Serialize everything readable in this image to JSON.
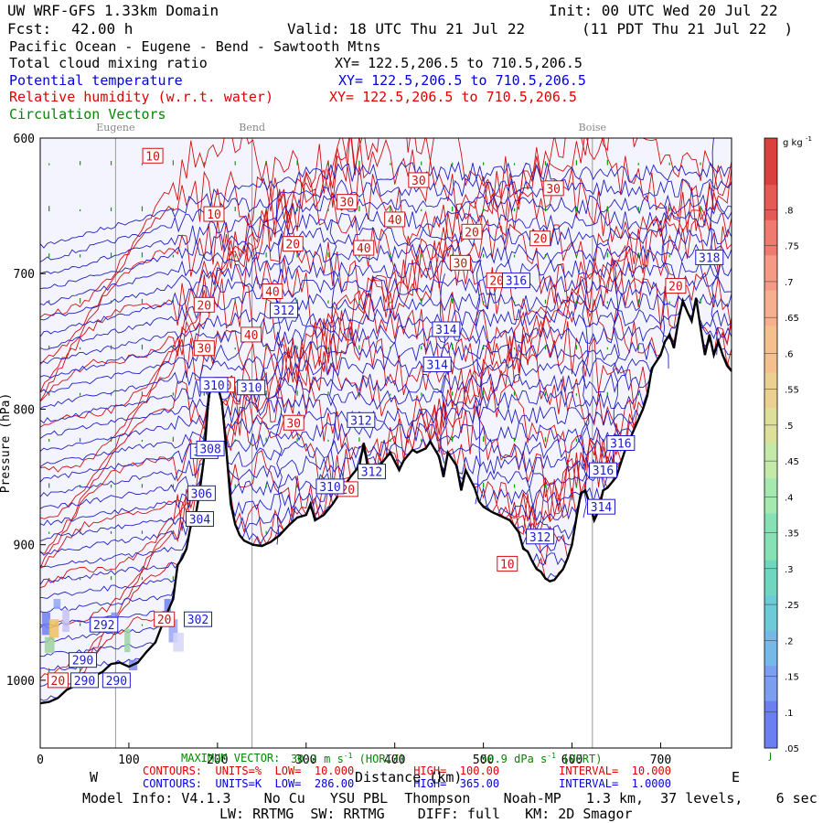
{
  "header": {
    "model": "UW WRF-GFS 1.33km Domain",
    "init": "Init: 00 UTC Wed 20 Jul 22",
    "fcst_label": "Fcst:",
    "fcst_value": "42.00 h",
    "valid": "Valid: 18 UTC Thu 21 Jul 22",
    "valid_local": "(11 PDT Thu 21 Jul 22  )",
    "region": "Pacific Ocean - Eugene - Bend - Sawtooth Mtns",
    "field1": "Total cloud mixing ratio",
    "field1_xy": "XY= 122.5,206.5 to 710.5,206.5",
    "field2": "Potential temperature",
    "field2_xy": "XY= 122.5,206.5 to 710.5,206.5",
    "field3": "Relative humidity (w.r.t. water)",
    "field3_xy": "XY= 122.5,206.5 to 710.5,206.5",
    "field4": "Circulation Vectors"
  },
  "colors": {
    "cloud_text": "#000000",
    "theta_text": "#0000dd",
    "rh_text": "#dd0000",
    "vector_text": "#008800",
    "terrain": "#000000",
    "grid": "#999999",
    "shade": "#f4f4ff"
  },
  "chart_data": {
    "type": "cross-section",
    "x": {
      "label": "Distance (km)",
      "range": [
        0,
        780
      ],
      "ticks": [
        0,
        100,
        200,
        300,
        400,
        500,
        600,
        700
      ],
      "left_end": "W",
      "right_end": "E"
    },
    "y": {
      "label": "Pressure (hPa)",
      "range": [
        1050,
        600
      ],
      "ticks": [
        600,
        700,
        800,
        900,
        1000
      ],
      "tick_labels": [
        "600",
        "700",
        "800",
        "900",
        "1000"
      ],
      "scale": "linear-pressure"
    },
    "locations": [
      {
        "name": "Eugene",
        "x_km": 85
      },
      {
        "name": "Bend",
        "x_km": 239
      },
      {
        "name": "Boise",
        "x_km": 623
      }
    ],
    "terrain_profile": [
      [
        0,
        1017
      ],
      [
        10,
        1016
      ],
      [
        20,
        1013
      ],
      [
        30,
        1007
      ],
      [
        40,
        1004
      ],
      [
        50,
        1001
      ],
      [
        60,
        997
      ],
      [
        70,
        994
      ],
      [
        80,
        988
      ],
      [
        90,
        987
      ],
      [
        100,
        990
      ],
      [
        110,
        987
      ],
      [
        120,
        979
      ],
      [
        130,
        972
      ],
      [
        140,
        955
      ],
      [
        150,
        940
      ],
      [
        155,
        915
      ],
      [
        160,
        910
      ],
      [
        165,
        903
      ],
      [
        170,
        885
      ],
      [
        175,
        880
      ],
      [
        180,
        860
      ],
      [
        185,
        835
      ],
      [
        190,
        790
      ],
      [
        195,
        780
      ],
      [
        200,
        782
      ],
      [
        205,
        795
      ],
      [
        210,
        830
      ],
      [
        215,
        870
      ],
      [
        220,
        885
      ],
      [
        225,
        893
      ],
      [
        230,
        897
      ],
      [
        240,
        900
      ],
      [
        250,
        901
      ],
      [
        260,
        898
      ],
      [
        270,
        893
      ],
      [
        280,
        886
      ],
      [
        290,
        880
      ],
      [
        300,
        878
      ],
      [
        305,
        870
      ],
      [
        310,
        882
      ],
      [
        320,
        878
      ],
      [
        330,
        870
      ],
      [
        340,
        860
      ],
      [
        350,
        850
      ],
      [
        360,
        842
      ],
      [
        365,
        825
      ],
      [
        370,
        845
      ],
      [
        375,
        848
      ],
      [
        385,
        840
      ],
      [
        395,
        832
      ],
      [
        405,
        845
      ],
      [
        410,
        838
      ],
      [
        420,
        830
      ],
      [
        425,
        832
      ],
      [
        435,
        829
      ],
      [
        440,
        824
      ],
      [
        450,
        835
      ],
      [
        455,
        850
      ],
      [
        460,
        832
      ],
      [
        470,
        842
      ],
      [
        475,
        860
      ],
      [
        480,
        845
      ],
      [
        490,
        858
      ],
      [
        495,
        868
      ],
      [
        500,
        872
      ],
      [
        510,
        876
      ],
      [
        520,
        879
      ],
      [
        530,
        882
      ],
      [
        540,
        891
      ],
      [
        545,
        903
      ],
      [
        550,
        905
      ],
      [
        555,
        912
      ],
      [
        560,
        918
      ],
      [
        565,
        920
      ],
      [
        570,
        925
      ],
      [
        575,
        927
      ],
      [
        580,
        926
      ],
      [
        590,
        918
      ],
      [
        595,
        910
      ],
      [
        600,
        900
      ],
      [
        605,
        880
      ],
      [
        610,
        862
      ],
      [
        615,
        860
      ],
      [
        620,
        870
      ],
      [
        625,
        882
      ],
      [
        630,
        875
      ],
      [
        635,
        860
      ],
      [
        640,
        858
      ],
      [
        650,
        850
      ],
      [
        660,
        830
      ],
      [
        670,
        815
      ],
      [
        680,
        800
      ],
      [
        685,
        790
      ],
      [
        690,
        770
      ],
      [
        695,
        765
      ],
      [
        700,
        760
      ],
      [
        705,
        750
      ],
      [
        710,
        745
      ],
      [
        715,
        755
      ],
      [
        720,
        735
      ],
      [
        725,
        720
      ],
      [
        730,
        728
      ],
      [
        735,
        735
      ],
      [
        740,
        718
      ],
      [
        745,
        740
      ],
      [
        750,
        760
      ],
      [
        755,
        745
      ],
      [
        760,
        760
      ],
      [
        765,
        750
      ],
      [
        770,
        760
      ],
      [
        775,
        768
      ],
      [
        780,
        772
      ]
    ],
    "theta_labels": [
      {
        "text": "290",
        "x": 48,
        "p": 985
      },
      {
        "text": "292",
        "x": 72,
        "p": 959
      },
      {
        "text": "290",
        "x": 50,
        "p": 1000
      },
      {
        "text": "290",
        "x": 86,
        "p": 1000
      },
      {
        "text": "302",
        "x": 178,
        "p": 955
      },
      {
        "text": "304",
        "x": 180,
        "p": 881
      },
      {
        "text": "306",
        "x": 182,
        "p": 862
      },
      {
        "text": "308",
        "x": 185,
        "p": 831
      },
      {
        "text": "308",
        "x": 192,
        "p": 829
      },
      {
        "text": "310",
        "x": 196,
        "p": 782
      },
      {
        "text": "310",
        "x": 238,
        "p": 784
      },
      {
        "text": "310",
        "x": 327,
        "p": 857
      },
      {
        "text": "312",
        "x": 275,
        "p": 727
      },
      {
        "text": "312",
        "x": 362,
        "p": 808
      },
      {
        "text": "312",
        "x": 374,
        "p": 846
      },
      {
        "text": "312",
        "x": 564,
        "p": 894
      },
      {
        "text": "314",
        "x": 458,
        "p": 741
      },
      {
        "text": "314",
        "x": 448,
        "p": 767
      },
      {
        "text": "314",
        "x": 633,
        "p": 872
      },
      {
        "text": "316",
        "x": 537,
        "p": 705
      },
      {
        "text": "316",
        "x": 655,
        "p": 825
      },
      {
        "text": "316",
        "x": 635,
        "p": 845
      },
      {
        "text": "318",
        "x": 755,
        "p": 688
      }
    ],
    "rh_labels": [
      {
        "text": "10",
        "x": 127,
        "p": 613
      },
      {
        "text": "10",
        "x": 196,
        "p": 656
      },
      {
        "text": "10",
        "x": 527,
        "p": 914
      },
      {
        "text": "20",
        "x": 185,
        "p": 723
      },
      {
        "text": "20",
        "x": 285,
        "p": 678
      },
      {
        "text": "20",
        "x": 347,
        "p": 859
      },
      {
        "text": "20",
        "x": 487,
        "p": 669
      },
      {
        "text": "20",
        "x": 564,
        "p": 674
      },
      {
        "text": "20",
        "x": 515,
        "p": 705
      },
      {
        "text": "20",
        "x": 717,
        "p": 709
      },
      {
        "text": "20",
        "x": 20,
        "p": 1000
      },
      {
        "text": "20",
        "x": 140,
        "p": 955
      },
      {
        "text": "30",
        "x": 185,
        "p": 755
      },
      {
        "text": "30",
        "x": 208,
        "p": 782
      },
      {
        "text": "30",
        "x": 286,
        "p": 810
      },
      {
        "text": "30",
        "x": 346,
        "p": 647
      },
      {
        "text": "30",
        "x": 427,
        "p": 631
      },
      {
        "text": "30",
        "x": 474,
        "p": 692
      },
      {
        "text": "30",
        "x": 579,
        "p": 637
      },
      {
        "text": "40",
        "x": 238,
        "p": 745
      },
      {
        "text": "40",
        "x": 262,
        "p": 713
      },
      {
        "text": "40",
        "x": 365,
        "p": 681
      },
      {
        "text": "40",
        "x": 400,
        "p": 660
      }
    ],
    "colorbar": {
      "unit": "g kg",
      "unit_sup": "-1",
      "min": 0.05,
      "max": 0.9,
      "labels": [
        ".8",
        ".75",
        ".7",
        ".65",
        ".6",
        ".55",
        ".5",
        ".45",
        ".4",
        ".35",
        ".3",
        ".25",
        ".2",
        ".15",
        ".1",
        ".05"
      ],
      "bottom_label": "J"
    }
  },
  "footer": {
    "max_vector_label": "MAXIMUM VECTOR:",
    "max_vector_h": "30.2 m s",
    "max_vector_h_sup": "-1",
    "max_vector_h_tag": "(HORIZ)",
    "max_vector_v": "50.9 dPa s",
    "max_vector_v_sup": "-1",
    "max_vector_v_tag": "(VERT)",
    "rh_contours": "CONTOURS:  UNITS=%  LOW=  10.000         HIGH=  100.00         INTERVAL=  10.000",
    "theta_contours": "CONTOURS:  UNITS=K  LOW=  286.00         HIGH=  365.00         INTERVAL=  1.0000",
    "model_info": "Model Info: V4.1.3    No Cu   YSU PBL  Thompson    Noah-MP   1.3 km,  37 levels,    6 sec",
    "model_info2": "LW: RRTMG  SW: RRTMG    DIFF: full   KM: 2D Smagor"
  }
}
